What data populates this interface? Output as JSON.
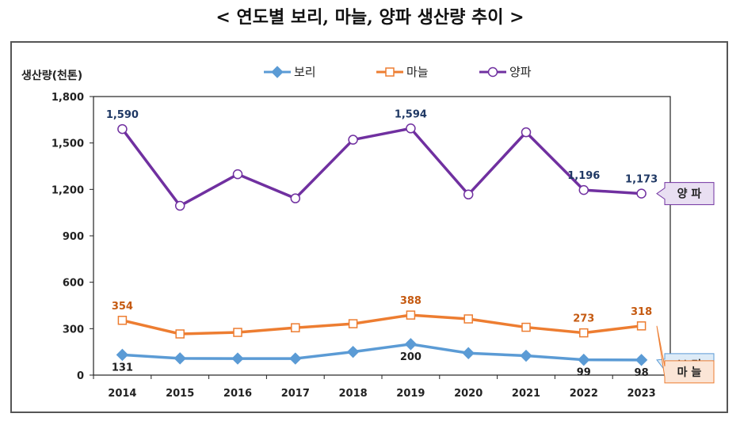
{
  "title": "< 연도별 보리, 마늘, 양파 생산량 추이 >",
  "chart_data": {
    "type": "line",
    "ylabel": "생산량(천톤)",
    "ylim": [
      0,
      1800
    ],
    "yticks": [
      "0",
      "300",
      "600",
      "900",
      "1,200",
      "1,500",
      "1,800"
    ],
    "categories": [
      "2014",
      "2015",
      "2016",
      "2017",
      "2018",
      "2019",
      "2020",
      "2021",
      "2022",
      "2023"
    ],
    "series": [
      {
        "name": "보리",
        "tag": "보 리",
        "color": "#5b9bd5",
        "marker": "diamond",
        "values": [
          131,
          108,
          107,
          107,
          150,
          200,
          142,
          125,
          99,
          98
        ],
        "labels": [
          {
            "i": 0,
            "text": "131"
          },
          {
            "i": 5,
            "text": "200"
          },
          {
            "i": 8,
            "text": "99"
          },
          {
            "i": 9,
            "text": "98"
          }
        ]
      },
      {
        "name": "마늘",
        "tag": "마 늘",
        "color": "#ed7d31",
        "marker": "square",
        "values": [
          354,
          266,
          276,
          306,
          332,
          388,
          363,
          309,
          273,
          318
        ],
        "labels": [
          {
            "i": 0,
            "text": "354"
          },
          {
            "i": 5,
            "text": "388"
          },
          {
            "i": 8,
            "text": "273"
          },
          {
            "i": 9,
            "text": "318"
          }
        ]
      },
      {
        "name": "양파",
        "tag": "양 파",
        "color": "#7030a0",
        "marker": "circle",
        "values": [
          1590,
          1094,
          1298,
          1142,
          1521,
          1594,
          1167,
          1569,
          1196,
          1173
        ],
        "labels": [
          {
            "i": 0,
            "text": "1,590"
          },
          {
            "i": 5,
            "text": "1,594"
          },
          {
            "i": 8,
            "text": "1,196"
          },
          {
            "i": 9,
            "text": "1,173"
          }
        ]
      }
    ],
    "grid": false,
    "legend": "top"
  }
}
